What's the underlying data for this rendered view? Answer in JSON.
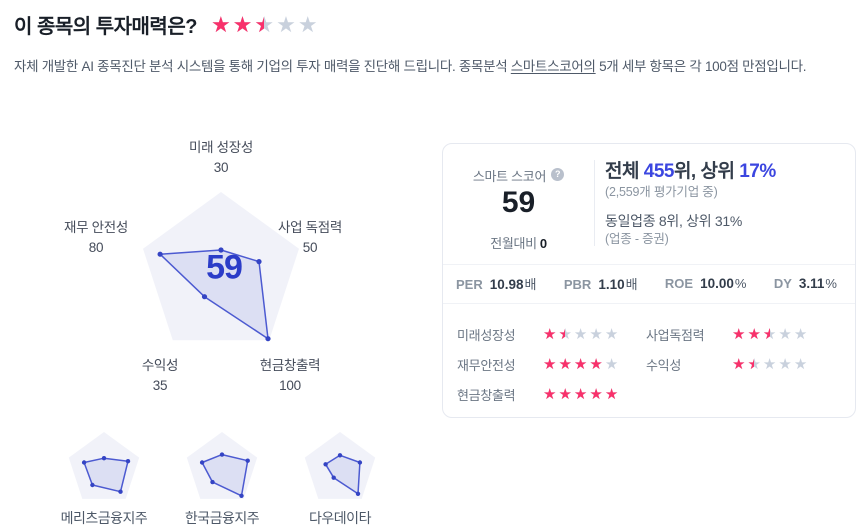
{
  "header": {
    "title": "이 종목의 투자매력은?",
    "rating": 2.5
  },
  "subtitle": {
    "part1": "자체 개발한 AI 종목진단 분석 시스템을 통해 기업의 투자 매력을 진단해 드립니다. 종목분석 ",
    "underlined": "스마트스코어의",
    "part2": " 5개 세부 항목은 각 100점 만점입니다."
  },
  "chart_data": [
    {
      "type": "radar",
      "name": "smart-score-main",
      "categories": [
        "미래 성장성",
        "사업 독점력",
        "현금창출력",
        "수익성",
        "재무 안전성"
      ],
      "values": [
        30,
        50,
        100,
        35,
        80
      ],
      "max": 100,
      "center_score": "59"
    },
    {
      "type": "radar",
      "name": "메리츠금융지주",
      "values": [
        30,
        70,
        78,
        55,
        58
      ],
      "max": 100
    },
    {
      "type": "radar",
      "name": "한국금융지주",
      "values": [
        40,
        75,
        92,
        45,
        58
      ],
      "max": 100
    },
    {
      "type": "radar",
      "name": "다우데이타",
      "values": [
        38,
        58,
        85,
        30,
        42
      ],
      "max": 100
    }
  ],
  "score_card": {
    "score_label": "스마트 스코어",
    "help_icon": "?",
    "score": "59",
    "mom_label": "전월대비",
    "mom_value": "0",
    "rank": {
      "pre": "전체 ",
      "rank": "455",
      "mid": "위, 상위 ",
      "pct": "17%"
    },
    "rank_sub": "(2,559개 평가기업 중)",
    "industry": "동일업종 8위, 상위 31%",
    "industry_sub": "(업종 - 증권)",
    "metrics": [
      {
        "label": "PER",
        "value": "10.98",
        "unit": "배"
      },
      {
        "label": "PBR",
        "value": "1.10",
        "unit": "배"
      },
      {
        "label": "ROE",
        "value": "10.00",
        "unit": "%"
      },
      {
        "label": "DY",
        "value": "3.11",
        "unit": "%"
      }
    ],
    "ratings": [
      {
        "label": "미래성장성",
        "stars": 1.5
      },
      {
        "label": "사업독점력",
        "stars": 2.5
      },
      {
        "label": "재무안전성",
        "stars": 4
      },
      {
        "label": "수익성",
        "stars": 1.5
      },
      {
        "label": "현금창출력",
        "stars": 5
      }
    ]
  },
  "colors": {
    "star_pink": "#f8316b",
    "star_gray": "#c9d1dd",
    "accent_blue": "#3b46e0",
    "radar_line": "#4c5ad1",
    "radar_fill": "rgba(76,90,209,0.12)",
    "pentagon_bg": "#f1f2f9"
  }
}
